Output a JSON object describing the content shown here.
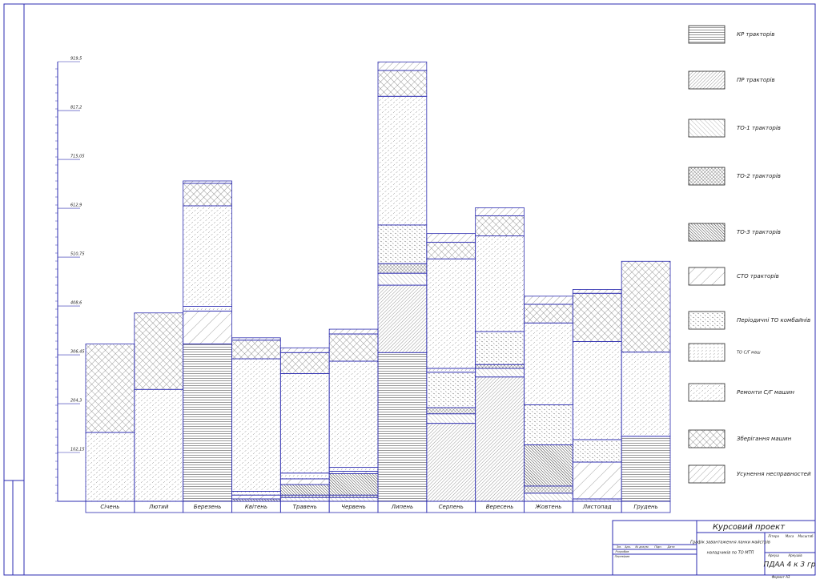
{
  "chart_data": {
    "type": "stacked-bar",
    "categories": [
      "Січень",
      "Лютий",
      "Березень",
      "Квітень",
      "Травень",
      "Червень",
      "Липень",
      "Серпень",
      "Вересень",
      "Жовтень",
      "Листопад",
      "Грудень"
    ],
    "series": [
      {
        "name": "КР тракторів",
        "color": "#555555",
        "values": [
          0,
          0,
          329,
          0,
          0,
          0,
          311,
          0,
          0,
          0,
          0,
          136
        ]
      },
      {
        "name": "ПР тракторів",
        "color": "#555555",
        "values": [
          0,
          0,
          0,
          0,
          0,
          0,
          141,
          163,
          260,
          0,
          0,
          0
        ]
      },
      {
        "name": "ТО-1 тракторів",
        "color": "#777777",
        "values": [
          0,
          0,
          0,
          0,
          8,
          8,
          25,
          20,
          18,
          17,
          5,
          0
        ]
      },
      {
        "name": "ТО-2 тракторів",
        "color": "#444444",
        "values": [
          0,
          0,
          0,
          0,
          5,
          5,
          20,
          13,
          8,
          15,
          0,
          0
        ]
      },
      {
        "name": "ТО-3 тракторів",
        "color": "#333333",
        "values": [
          0,
          0,
          0,
          5,
          22,
          45,
          0,
          0,
          0,
          86,
          0,
          0
        ]
      },
      {
        "name": "СТО тракторів",
        "color": "#666666",
        "values": [
          0,
          0,
          69,
          8,
          12,
          5,
          0,
          0,
          0,
          0,
          77,
          0
        ]
      },
      {
        "name": "Періодичні ТО комбайнів",
        "color": "#777777",
        "values": [
          0,
          0,
          0,
          0,
          0,
          0,
          81,
          74,
          69,
          84,
          47,
          0
        ]
      },
      {
        "name": "ТО С/Г маш",
        "color": "#888888",
        "values": [
          0,
          0,
          10,
          8,
          12,
          8,
          0,
          8,
          0,
          0,
          0,
          0
        ]
      },
      {
        "name": "Ремонти С/Г машин",
        "color": "#888888",
        "values": [
          144,
          234,
          210,
          277,
          208,
          222,
          269,
          229,
          200,
          171,
          205,
          176
        ]
      },
      {
        "name": "Зберігання машин",
        "color": "#555555",
        "values": [
          185,
          160,
          47,
          39,
          44,
          57,
          54,
          35,
          42,
          39,
          101,
          190
        ]
      },
      {
        "name": "Усунення несправностей",
        "color": "#666666",
        "values": [
          0,
          0,
          5,
          5,
          10,
          10,
          18,
          18,
          17,
          17,
          8,
          0
        ]
      }
    ],
    "ylim": [
      0,
      919.5
    ],
    "yticks": [
      {
        "value": 102.15,
        "label": "102,15"
      },
      {
        "value": 204.3,
        "label": "204,3"
      },
      {
        "value": 306.45,
        "label": "306,45"
      },
      {
        "value": 408.6,
        "label": "408,6"
      },
      {
        "value": 510.75,
        "label": "510,75"
      },
      {
        "value": 612.9,
        "label": "612,9"
      },
      {
        "value": 715.05,
        "label": "715,05"
      },
      {
        "value": 817.2,
        "label": "817,2"
      },
      {
        "value": 919.5,
        "label": "919,5"
      }
    ],
    "grid": false,
    "legend": "right"
  },
  "title_block": {
    "project": "Курсовий проект",
    "subject_line1": "Графік завантаження ланки майстрів",
    "subject_line2": "наладчиків по ТО МТП",
    "group": "ПДАА 4 к 3 гр",
    "headers": [
      "Зм.",
      "Арк.",
      "№ докум.",
      "Підп.",
      "Дата"
    ],
    "roles": [
      "Розробив",
      "Перевірив"
    ],
    "letter": "Літера",
    "mass": "Маса",
    "scale": "Масштаб",
    "sheet": "Аркуш",
    "sheets": "Аркушів",
    "format": "Формат А3"
  }
}
